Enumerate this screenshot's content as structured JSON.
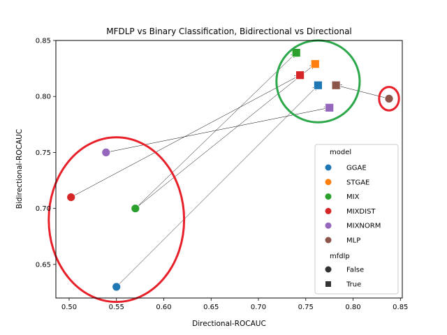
{
  "chart_data": {
    "type": "scatter",
    "title": "MFDLP vs Binary Classification, Bidirectional vs Directional",
    "xlabel": "Directional-ROCAUC",
    "ylabel": "Bidirectional-ROCAUC",
    "xlim": [
      0.486,
      0.852
    ],
    "ylim": [
      0.62,
      0.85
    ],
    "xticks": [
      "0.50",
      "0.55",
      "0.60",
      "0.65",
      "0.70",
      "0.75",
      "0.80",
      "0.85"
    ],
    "yticks": [
      "0.65",
      "0.70",
      "0.75",
      "0.80",
      "0.85"
    ],
    "grid": false,
    "legend_placement": "lower-right",
    "legend": {
      "hue_title": "model",
      "style_title": "mfdlp",
      "styles": [
        {
          "label": "False",
          "marker": "circle"
        },
        {
          "label": "True",
          "marker": "square"
        }
      ]
    },
    "series": [
      {
        "name": "GGAE",
        "color": "#1f77b4",
        "points": [
          {
            "x": 0.55,
            "y": 0.63,
            "mfdlp": "False"
          },
          {
            "x": 0.763,
            "y": 0.81,
            "mfdlp": "True"
          }
        ]
      },
      {
        "name": "STGAE",
        "color": "#ff7f0e",
        "points": [
          {
            "x": 0.76,
            "y": 0.829,
            "mfdlp": "True"
          }
        ]
      },
      {
        "name": "MIX",
        "color": "#2ca02c",
        "points": [
          {
            "x": 0.57,
            "y": 0.7,
            "mfdlp": "False"
          },
          {
            "x": 0.74,
            "y": 0.839,
            "mfdlp": "True"
          }
        ]
      },
      {
        "name": "MIXDIST",
        "color": "#d62728",
        "points": [
          {
            "x": 0.502,
            "y": 0.71,
            "mfdlp": "False"
          },
          {
            "x": 0.744,
            "y": 0.819,
            "mfdlp": "True"
          }
        ]
      },
      {
        "name": "MIXNORM",
        "color": "#9467bd",
        "points": [
          {
            "x": 0.539,
            "y": 0.75,
            "mfdlp": "False"
          },
          {
            "x": 0.775,
            "y": 0.79,
            "mfdlp": "True"
          }
        ]
      },
      {
        "name": "MLP",
        "color": "#8c564b",
        "points": [
          {
            "x": 0.838,
            "y": 0.798,
            "mfdlp": "False"
          },
          {
            "x": 0.782,
            "y": 0.81,
            "mfdlp": "True"
          }
        ]
      }
    ],
    "arrows": [
      {
        "from": [
          0.55,
          0.63
        ],
        "to": [
          0.763,
          0.81
        ]
      },
      {
        "from": [
          0.57,
          0.7
        ],
        "to": [
          0.76,
          0.829
        ]
      },
      {
        "from": [
          0.57,
          0.7
        ],
        "to": [
          0.74,
          0.839
        ]
      },
      {
        "from": [
          0.502,
          0.71
        ],
        "to": [
          0.744,
          0.819
        ]
      },
      {
        "from": [
          0.539,
          0.75
        ],
        "to": [
          0.775,
          0.79
        ]
      },
      {
        "from": [
          0.838,
          0.798
        ],
        "to": [
          0.782,
          0.81
        ]
      }
    ],
    "annotations": [
      {
        "shape": "ellipse",
        "color": "#e8202a",
        "cx": 0.55,
        "cy": 0.69,
        "rx": 0.0715,
        "ry": 0.0735
      },
      {
        "shape": "ellipse",
        "color": "#2ca84a",
        "cx": 0.763,
        "cy": 0.8135,
        "rx": 0.044,
        "ry": 0.0365
      },
      {
        "shape": "ellipse",
        "color": "#e8202a",
        "cx": 0.838,
        "cy": 0.798,
        "rx": 0.0105,
        "ry": 0.0105
      }
    ]
  }
}
